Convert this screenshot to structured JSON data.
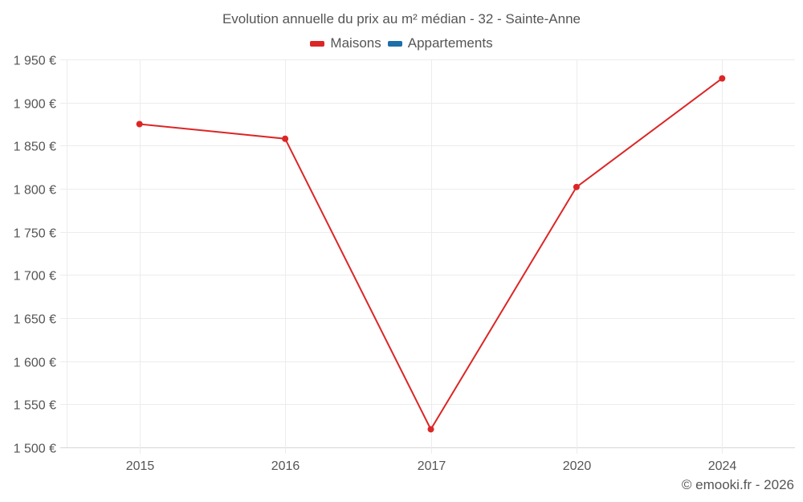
{
  "chart": {
    "title": "Evolution annuelle du prix au m² médian - 32 - Sainte-Anne",
    "legend": [
      {
        "label": "Maisons",
        "color": "#dc2626"
      },
      {
        "label": "Appartements",
        "color": "#1e6ea8"
      }
    ],
    "credit": "© emooki.fr - 2026"
  },
  "chart_data": {
    "type": "line",
    "title": "Evolution annuelle du prix au m² médian - 32 - Sainte-Anne",
    "xlabel": "",
    "ylabel": "",
    "categories": [
      "2015",
      "2016",
      "2017",
      "2020",
      "2024"
    ],
    "series": [
      {
        "name": "Maisons",
        "color": "#dc2626",
        "values": [
          1875,
          1858,
          1521,
          1802,
          1928
        ]
      },
      {
        "name": "Appartements",
        "color": "#1e6ea8",
        "values": []
      }
    ],
    "ylim": [
      1500,
      1950
    ],
    "yticks": [
      1500,
      1550,
      1600,
      1650,
      1700,
      1750,
      1800,
      1850,
      1900,
      1950
    ],
    "ytick_labels": [
      "1 500 €",
      "1 550 €",
      "1 600 €",
      "1 650 €",
      "1 700 €",
      "1 750 €",
      "1 800 €",
      "1 850 €",
      "1 900 €",
      "1 950 €"
    ],
    "grid": true,
    "legend_position": "top"
  }
}
